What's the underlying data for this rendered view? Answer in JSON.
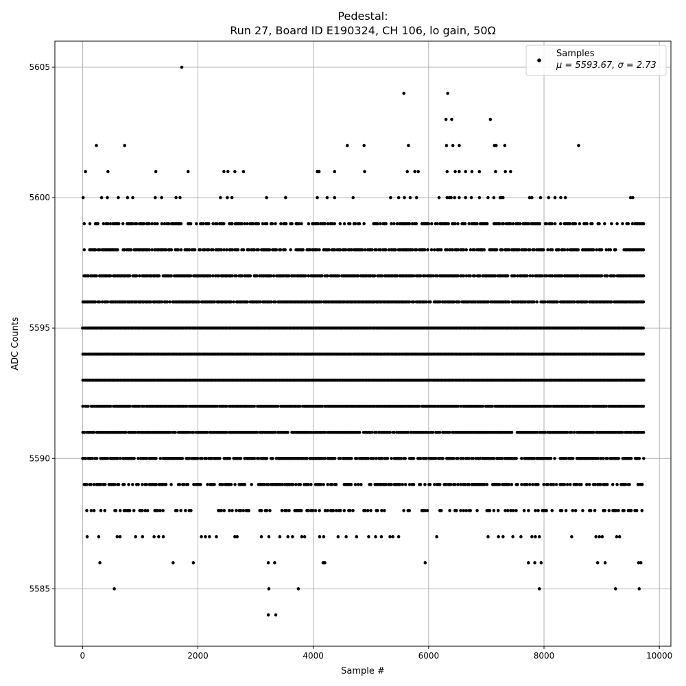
{
  "chart_data": {
    "type": "scatter",
    "title_line1": "Pedestal:",
    "title_line2": "Run 27, Board ID E190324, CH 106, lo gain, 50Ω",
    "xlabel": "Sample #",
    "ylabel": "ADC Counts",
    "xlim": [
      -480,
      10200
    ],
    "ylim": [
      5582.8,
      5606.0
    ],
    "xticks": [
      0,
      2000,
      4000,
      6000,
      8000,
      10000
    ],
    "yticks": [
      5585,
      5590,
      5595,
      5600,
      5605
    ],
    "grid": true,
    "legend_position": "top-right",
    "legend": {
      "label": "Samples",
      "stats": "μ = 5593.67, σ = 2.73"
    },
    "marker_color": "#000000",
    "sample_count": 9728,
    "series": [
      {
        "name": "Samples",
        "points": [
          [
            1720,
            5605
          ],
          [
            5570,
            5604
          ],
          [
            6330,
            5604
          ],
          [
            6300,
            5603
          ],
          [
            6400,
            5603
          ],
          [
            7070,
            5603
          ],
          [
            240,
            5602
          ],
          [
            730,
            5602
          ],
          [
            4590,
            5602
          ],
          [
            4880,
            5602
          ],
          [
            5650,
            5602
          ],
          [
            6310,
            5602
          ],
          [
            6420,
            5602
          ],
          [
            6530,
            5602
          ],
          [
            7140,
            5602
          ],
          [
            7170,
            5602
          ],
          [
            7320,
            5602
          ],
          [
            8600,
            5602
          ],
          [
            50,
            5601
          ],
          [
            440,
            5601
          ],
          [
            1270,
            5601
          ],
          [
            1830,
            5601
          ],
          [
            2450,
            5601
          ],
          [
            2520,
            5601
          ],
          [
            2640,
            5601
          ],
          [
            2790,
            5601
          ],
          [
            4070,
            5601
          ],
          [
            4100,
            5601
          ],
          [
            4370,
            5601
          ],
          [
            4890,
            5601
          ],
          [
            5630,
            5601
          ],
          [
            5760,
            5601
          ],
          [
            5820,
            5601
          ],
          [
            6320,
            5601
          ],
          [
            6460,
            5601
          ],
          [
            6530,
            5601
          ],
          [
            6640,
            5601
          ],
          [
            6750,
            5601
          ],
          [
            6880,
            5601
          ],
          [
            7160,
            5601
          ],
          [
            7330,
            5601
          ],
          [
            7420,
            5601
          ],
          [
            10,
            5600
          ],
          [
            330,
            5600
          ],
          [
            430,
            5600
          ],
          [
            620,
            5600
          ],
          [
            780,
            5600
          ],
          [
            870,
            5600
          ],
          [
            1260,
            5600
          ],
          [
            1370,
            5600
          ],
          [
            1620,
            5600
          ],
          [
            1690,
            5600
          ],
          [
            2390,
            5600
          ],
          [
            2510,
            5600
          ],
          [
            2590,
            5600
          ],
          [
            3190,
            5600
          ],
          [
            3520,
            5600
          ],
          [
            4070,
            5600
          ],
          [
            4240,
            5600
          ],
          [
            4370,
            5600
          ],
          [
            4690,
            5600
          ],
          [
            5340,
            5600
          ],
          [
            5480,
            5600
          ],
          [
            5580,
            5600
          ],
          [
            5680,
            5600
          ],
          [
            5790,
            5600
          ],
          [
            6180,
            5600
          ],
          [
            6320,
            5600
          ],
          [
            6360,
            5600
          ],
          [
            6390,
            5600
          ],
          [
            6450,
            5600
          ],
          [
            6530,
            5600
          ],
          [
            6640,
            5600
          ],
          [
            6740,
            5600
          ],
          [
            6880,
            5600
          ],
          [
            7030,
            5600
          ],
          [
            7130,
            5600
          ],
          [
            7240,
            5600
          ],
          [
            7260,
            5600
          ],
          [
            7290,
            5600
          ],
          [
            7750,
            5600
          ],
          [
            7790,
            5600
          ],
          [
            7940,
            5600
          ],
          [
            8080,
            5600
          ],
          [
            8190,
            5600
          ],
          [
            8290,
            5600
          ],
          [
            8370,
            5600
          ],
          [
            9500,
            5600
          ],
          [
            9540,
            5600
          ],
          [
            550,
            5585
          ],
          [
            3230,
            5585
          ],
          [
            3740,
            5585
          ],
          [
            7920,
            5585
          ],
          [
            9240,
            5585
          ],
          [
            9650,
            5585
          ],
          [
            3220,
            5584
          ],
          [
            3350,
            5584
          ],
          [
            300,
            5586
          ],
          [
            1570,
            5586
          ],
          [
            1920,
            5586
          ],
          [
            3220,
            5586
          ],
          [
            3330,
            5586
          ],
          [
            4170,
            5586
          ],
          [
            4200,
            5586
          ],
          [
            5940,
            5586
          ],
          [
            7730,
            5586
          ],
          [
            7840,
            5586
          ],
          [
            7950,
            5586
          ],
          [
            8930,
            5586
          ],
          [
            9060,
            5586
          ],
          [
            9640,
            5586
          ],
          [
            9680,
            5586
          ],
          [
            80,
            5587
          ],
          [
            280,
            5587
          ],
          [
            600,
            5587
          ],
          [
            650,
            5587
          ],
          [
            920,
            5587
          ],
          [
            1040,
            5587
          ],
          [
            1240,
            5587
          ],
          [
            1320,
            5587
          ],
          [
            1400,
            5587
          ],
          [
            2060,
            5587
          ],
          [
            2130,
            5587
          ],
          [
            2200,
            5587
          ],
          [
            2320,
            5587
          ],
          [
            2640,
            5587
          ],
          [
            2680,
            5587
          ],
          [
            3100,
            5587
          ],
          [
            3230,
            5587
          ],
          [
            3420,
            5587
          ],
          [
            3560,
            5587
          ],
          [
            3640,
            5587
          ],
          [
            3800,
            5587
          ],
          [
            3850,
            5587
          ],
          [
            4110,
            5587
          ],
          [
            4180,
            5587
          ],
          [
            4430,
            5587
          ],
          [
            4570,
            5587
          ],
          [
            4750,
            5587
          ],
          [
            4960,
            5587
          ],
          [
            5080,
            5587
          ],
          [
            5180,
            5587
          ],
          [
            5330,
            5587
          ],
          [
            5380,
            5587
          ],
          [
            5480,
            5587
          ],
          [
            6140,
            5587
          ],
          [
            7030,
            5587
          ],
          [
            7210,
            5587
          ],
          [
            7290,
            5587
          ],
          [
            7460,
            5587
          ],
          [
            7600,
            5587
          ],
          [
            7790,
            5587
          ],
          [
            7850,
            5587
          ],
          [
            7920,
            5587
          ],
          [
            8480,
            5587
          ],
          [
            8900,
            5587
          ],
          [
            8960,
            5587
          ],
          [
            9010,
            5587
          ],
          [
            9260,
            5587
          ],
          [
            9310,
            5587
          ]
        ]
      }
    ],
    "dense_levels": [
      {
        "y": 5599,
        "density": 0.62
      },
      {
        "y": 5598,
        "density": 0.72
      },
      {
        "y": 5597,
        "density": 0.84
      },
      {
        "y": 5596,
        "density": 0.93
      },
      {
        "y": 5595,
        "density": 1.0
      },
      {
        "y": 5594,
        "density": 1.0
      },
      {
        "y": 5593,
        "density": 1.0
      },
      {
        "y": 5592,
        "density": 0.95
      },
      {
        "y": 5591,
        "density": 0.9
      },
      {
        "y": 5590,
        "density": 0.78
      },
      {
        "y": 5589,
        "density": 0.62
      },
      {
        "y": 5588,
        "density": 0.32
      }
    ]
  }
}
